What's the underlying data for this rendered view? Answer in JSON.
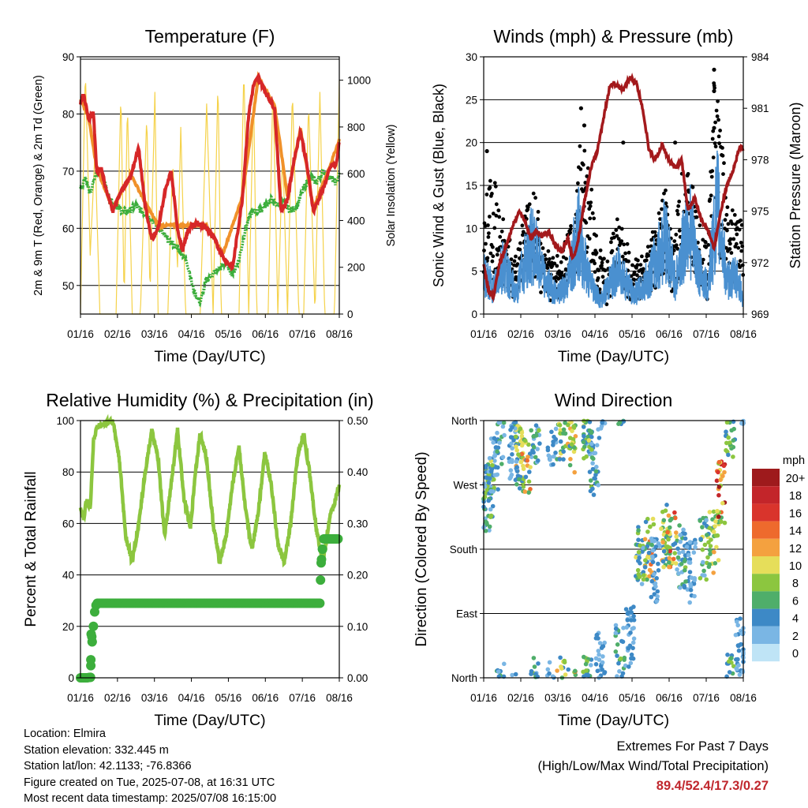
{
  "chart_data": [
    {
      "type": "line",
      "title": "Temperature (F)",
      "xlabel": "Time (Day/UTC)",
      "ylabel": "2m & 9m T (Red, Orange) & 2m Td (Green)",
      "ylabel_right": "Solar Insolation (Yellow)",
      "ylim": [
        45,
        90
      ],
      "ylim_right": [
        0,
        1100
      ],
      "x_ticks": [
        "01/16",
        "02/16",
        "03/16",
        "04/16",
        "05/16",
        "06/16",
        "07/16",
        "08/16"
      ],
      "y_ticks": [
        50,
        60,
        70,
        80,
        90
      ],
      "y_ticks_right": [
        0,
        200,
        400,
        600,
        800,
        1000
      ],
      "grid": true,
      "series": [
        {
          "name": "2m T",
          "color": "#d62728",
          "x": [
            0,
            0.1,
            0.25,
            0.4,
            0.5,
            0.65,
            0.8,
            1.0,
            1.3,
            1.55,
            1.8,
            2.0,
            2.2,
            2.4,
            2.6,
            2.8,
            3.0,
            3.15,
            3.35,
            3.6,
            3.9,
            4.15,
            4.4,
            4.7,
            5.0,
            5.2,
            5.35,
            5.5,
            5.7,
            6.0,
            6.2,
            6.4,
            6.6,
            6.8,
            7.0,
            7.2,
            7.5,
            7.75,
            7.9,
            8.0
          ],
          "y": [
            82,
            83.5,
            79,
            80.5,
            70,
            70.5,
            66.5,
            63,
            67,
            69,
            74,
            64,
            58,
            60,
            66,
            70,
            60,
            56,
            60,
            61,
            60,
            58,
            55,
            53,
            65,
            80,
            85,
            86.5,
            84,
            81,
            63,
            65,
            72,
            77,
            71,
            63,
            67,
            71,
            71,
            75
          ]
        },
        {
          "name": "9m T",
          "color": "#f0912a",
          "x": [
            0,
            0.25,
            0.5,
            1.0,
            1.55,
            2.0,
            2.4,
            3.0,
            3.35,
            3.9,
            4.4,
            5.0,
            5.5,
            6.0,
            6.4,
            6.8,
            7.2,
            7.75,
            8.0
          ],
          "y": [
            82.5,
            79.5,
            70.5,
            63.5,
            69.5,
            64.5,
            60.5,
            60.5,
            60.5,
            60.5,
            55.5,
            65.5,
            86.5,
            81.5,
            65.5,
            77.5,
            63.5,
            71.5,
            75.5
          ]
        },
        {
          "name": "2m Td",
          "color": "#3cae3c",
          "x": [
            0,
            0.15,
            0.3,
            0.5,
            0.7,
            0.9,
            1.1,
            1.3,
            1.5,
            1.7,
            1.9,
            2.1,
            2.3,
            2.5,
            2.7,
            2.9,
            3.1,
            3.3,
            3.5,
            3.7,
            3.9,
            4.1,
            4.3,
            4.5,
            4.7,
            4.9,
            5.1,
            5.3,
            5.5,
            5.7,
            5.9,
            6.1,
            6.3,
            6.5,
            6.7,
            6.9,
            7.1,
            7.3,
            7.5,
            7.7,
            7.9,
            8.0
          ],
          "y": [
            67,
            69,
            66,
            70,
            69,
            65,
            64,
            63,
            63,
            64,
            63,
            62,
            61,
            59.5,
            58,
            57,
            56,
            54,
            49,
            47,
            51,
            52,
            53,
            54,
            52,
            54.5,
            60,
            63,
            63,
            64,
            65,
            64,
            64.5,
            63,
            64,
            67,
            69,
            68,
            70,
            69,
            68,
            69.5
          ]
        },
        {
          "name": "Solar Insolation",
          "color": "#f5d24a",
          "axis": "right",
          "x": [
            0,
            0.15,
            0.3,
            0.45,
            0.6,
            0.75,
            1.1,
            1.25,
            1.35,
            1.45,
            1.6,
            1.75,
            1.85,
            2.05,
            2.15,
            2.3,
            2.4,
            2.55,
            2.7,
            2.85,
            3.0,
            3.1,
            3.25,
            3.4,
            3.55,
            3.7,
            3.9,
            4.1,
            4.25,
            4.35,
            4.5,
            4.75,
            4.9,
            5.05,
            5.2,
            5.35,
            5.45,
            5.6,
            5.8,
            5.95,
            6.1,
            6.25,
            6.4,
            6.55,
            6.75,
            6.9,
            7.05,
            7.25,
            7.4,
            7.55,
            7.7,
            7.85,
            8.0
          ],
          "y": [
            0,
            1040,
            250,
            700,
            0,
            0,
            0,
            950,
            50,
            900,
            0,
            0,
            0,
            850,
            80,
            950,
            0,
            0,
            0,
            650,
            200,
            800,
            0,
            0,
            0,
            0,
            900,
            0,
            1000,
            0,
            0,
            0,
            0,
            1050,
            0,
            950,
            0,
            0,
            0,
            980,
            0,
            700,
            0,
            950,
            0,
            0,
            900,
            0,
            950,
            0,
            0,
            0,
            1000
          ]
        }
      ]
    },
    {
      "type": "scatter",
      "title": "Winds (mph) & Pressure (mb)",
      "xlabel": "Time (Day/UTC)",
      "ylabel": "Sonic Wind & Gust (Blue, Black)",
      "ylabel_right": "Station Pressure (Maroon)",
      "ylim": [
        0,
        30
      ],
      "ylim_right": [
        969,
        984
      ],
      "x_ticks": [
        "01/16",
        "02/16",
        "03/16",
        "04/16",
        "05/16",
        "06/16",
        "07/16",
        "08/16"
      ],
      "y_ticks": [
        0,
        5,
        10,
        15,
        20,
        25,
        30
      ],
      "y_ticks_right": [
        969,
        972,
        975,
        978,
        981,
        984
      ],
      "grid": true,
      "series": [
        {
          "name": "Sonic Wind",
          "color": "#4a90d0",
          "x": [
            0,
            0.3,
            0.6,
            1.0,
            1.2,
            1.5,
            1.9,
            2.3,
            2.6,
            2.9,
            3.2,
            3.6,
            3.9,
            4.2,
            4.6,
            4.9,
            5.3,
            5.6,
            5.9,
            6.1,
            6.3,
            6.6,
            6.9,
            7.2,
            7.5,
            7.8,
            8.0
          ],
          "y": [
            6,
            4,
            8,
            3,
            7,
            11,
            5,
            3,
            5,
            13,
            6,
            2,
            5,
            7,
            3,
            4,
            8,
            12,
            5,
            9,
            15,
            7,
            4,
            17,
            5,
            6,
            2
          ]
        },
        {
          "name": "Gust",
          "color": "#000000",
          "x": [
            0,
            0.2,
            0.4,
            0.7,
            1.0,
            1.3,
            1.5,
            1.8,
            2.2,
            2.5,
            2.8,
            3.0,
            3.2,
            3.5,
            3.8,
            4.1,
            4.4,
            4.7,
            5.0,
            5.3,
            5.6,
            5.9,
            6.1,
            6.3,
            6.6,
            6.9,
            7.1,
            7.3,
            7.6,
            7.9,
            8.0
          ],
          "y": [
            10,
            17,
            14,
            9,
            6,
            13,
            16,
            9,
            6,
            8,
            12,
            22,
            18,
            8,
            6,
            12,
            8,
            6,
            7,
            11,
            14,
            9,
            18,
            16,
            12,
            8,
            28.5,
            22,
            11,
            14,
            8
          ]
        },
        {
          "name": "Station Pressure",
          "color": "#a3191c",
          "axis": "right",
          "x": [
            0,
            0.15,
            0.3,
            0.5,
            0.7,
            0.9,
            1.1,
            1.3,
            1.45,
            1.6,
            1.8,
            2.0,
            2.2,
            2.4,
            2.6,
            2.75,
            2.9,
            3.1,
            3.3,
            3.5,
            3.7,
            3.9,
            4.1,
            4.3,
            4.5,
            4.7,
            4.9,
            5.1,
            5.3,
            5.5,
            5.7,
            5.9,
            6.1,
            6.3,
            6.5,
            6.7,
            6.9,
            7.1,
            7.3,
            7.5,
            7.7,
            7.9,
            8.0
          ],
          "y": [
            971.8,
            970.4,
            970.0,
            972.0,
            973.0,
            974.2,
            975.0,
            974.3,
            973.4,
            973.8,
            973.6,
            973.8,
            973.0,
            972.6,
            973.4,
            972.2,
            973.2,
            975.5,
            977.5,
            978.5,
            980.5,
            982.4,
            982.4,
            982.0,
            982.8,
            982.5,
            981.0,
            978.5,
            978.0,
            978.9,
            978.0,
            977.5,
            978.0,
            975.0,
            975.8,
            974.5,
            974.0,
            972.8,
            975.0,
            976.5,
            977.5,
            978.8,
            978.6
          ]
        }
      ]
    },
    {
      "type": "line",
      "title": "Relative Humidity (%) & Precipitation (in)",
      "xlabel": "Time (Day/UTC)",
      "ylabel": "Percent & Total Rainfall",
      "ylim": [
        0,
        100
      ],
      "ylim_right": [
        0,
        0.5
      ],
      "x_ticks": [
        "01/16",
        "02/16",
        "03/16",
        "04/16",
        "05/16",
        "06/16",
        "07/16",
        "08/16"
      ],
      "y_ticks": [
        0,
        20,
        40,
        60,
        80,
        100
      ],
      "y_ticks_right": [
        "0.00",
        "0.10",
        "0.20",
        "0.30",
        "0.40",
        "0.50"
      ],
      "grid": true,
      "series": [
        {
          "name": "Relative Humidity",
          "color": "#8cc63f",
          "x": [
            0,
            0.1,
            0.2,
            0.3,
            0.4,
            0.5,
            0.6,
            0.8,
            1.0,
            1.2,
            1.4,
            1.6,
            1.8,
            2.0,
            2.2,
            2.4,
            2.6,
            2.8,
            3.0,
            3.2,
            3.4,
            3.55,
            3.7,
            3.9,
            4.1,
            4.3,
            4.5,
            4.7,
            4.9,
            5.1,
            5.3,
            5.5,
            5.7,
            5.9,
            6.1,
            6.3,
            6.5,
            6.7,
            6.9,
            7.1,
            7.3,
            7.5,
            7.7,
            7.9,
            8.0
          ],
          "y": [
            65,
            62,
            70,
            65,
            92,
            97,
            98,
            99,
            100,
            85,
            55,
            45,
            60,
            80,
            96,
            85,
            55,
            75,
            96,
            70,
            58,
            80,
            95,
            85,
            60,
            45,
            55,
            75,
            90,
            65,
            50,
            65,
            88,
            75,
            52,
            45,
            60,
            85,
            95,
            78,
            57,
            45,
            62,
            70,
            75
          ]
        },
        {
          "name": "Total Precipitation",
          "color": "#3cae3c",
          "axis": "right",
          "x": [
            0,
            0.2,
            0.3,
            0.33,
            0.36,
            0.4,
            0.45,
            0.5,
            1.0,
            2.0,
            3.0,
            4.0,
            5.0,
            6.0,
            7.0,
            7.4,
            7.42,
            7.45,
            7.48,
            7.5,
            7.6,
            8.0
          ],
          "y": [
            0,
            0,
            0.001,
            0.035,
            0.07,
            0.1,
            0.135,
            0.145,
            0.145,
            0.145,
            0.145,
            0.145,
            0.145,
            0.145,
            0.145,
            0.145,
            0.19,
            0.24,
            0.25,
            0.27,
            0.27,
            0.27
          ]
        }
      ]
    },
    {
      "type": "scatter",
      "title": "Wind Direction",
      "xlabel": "Time (Day/UTC)",
      "ylabel": "Direction (Colored By Speed)",
      "ylim": [
        0,
        360
      ],
      "x_ticks": [
        "01/16",
        "02/16",
        "03/16",
        "04/16",
        "05/16",
        "06/16",
        "07/16",
        "08/16"
      ],
      "y_ticks": [
        "North",
        "East",
        "South",
        "West",
        "North"
      ],
      "legend": {
        "title": "mph",
        "labels": [
          "20+",
          "18",
          "16",
          "14",
          "12",
          "10",
          "8",
          "6",
          "4",
          "2",
          "0"
        ],
        "colors": [
          "#9e1a1c",
          "#c3252a",
          "#d9342c",
          "#ee6a2d",
          "#f4a13f",
          "#e6de5a",
          "#8cc63f",
          "#4fae6a",
          "#3d89c6",
          "#7ab6e4",
          "#bfe4f6"
        ]
      },
      "series": [
        {
          "name": "Direction",
          "x": [
            0.1,
            0.2,
            0.3,
            0.5,
            0.9,
            1.1,
            1.3,
            1.6,
            2.1,
            2.4,
            2.7,
            3.2,
            3.4,
            3.6,
            4.2,
            4.5,
            4.8,
            5.1,
            5.3,
            5.6,
            5.8,
            6.1,
            6.4,
            6.8,
            7.1,
            7.3,
            7.6,
            7.9
          ],
          "y": [
            250,
            270,
            300,
            340,
            320,
            310,
            300,
            345,
            340,
            350,
            330,
            350,
            300,
            20,
            30,
            60,
            170,
            180,
            150,
            200,
            190,
            170,
            150,
            180,
            190,
            260,
            350,
            40
          ],
          "speed": [
            6,
            8,
            4,
            6,
            4,
            10,
            12,
            6,
            4,
            10,
            12,
            8,
            6,
            4,
            6,
            4,
            8,
            12,
            4,
            10,
            14,
            6,
            4,
            8,
            10,
            18,
            8,
            4
          ]
        }
      ]
    }
  ],
  "info": {
    "location": "Location: Elmira",
    "elevation": "Station elevation: 332.445 m",
    "latlon": "Station lat/lon: 42.1133; -76.8366",
    "created": "Figure created on Tue, 2025-07-08, at 16:31 UTC",
    "timestamp": "Most recent data timestamp: 2025/07/08 16:15:00"
  },
  "extremes": {
    "line1": "Extremes For Past 7 Days",
    "line2": "(High/Low/Max Wind/Total Precipitation)",
    "values": "89.4/52.4/17.3/0.27"
  }
}
